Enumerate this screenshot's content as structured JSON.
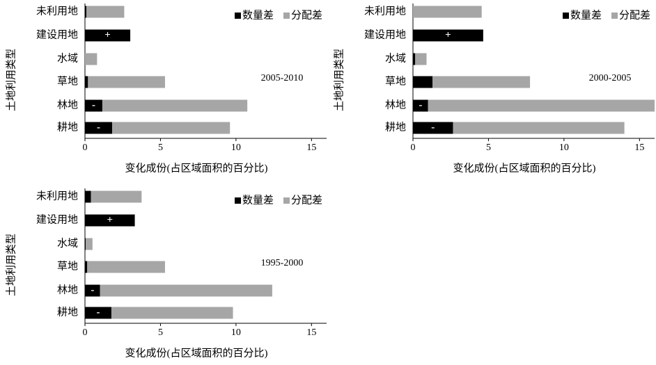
{
  "chart_data": [
    {
      "type": "stacked-barh",
      "title": "2005-2010",
      "xlabel": "变化成份(占区域面积的百分比)",
      "ylabel": "土地利用类型",
      "categories": [
        "未利用地",
        "建设用地",
        "水域",
        "草地",
        "林地",
        "耕地"
      ],
      "series": [
        {
          "name": "数量差",
          "color": "#000000",
          "values": [
            0.1,
            3.0,
            0,
            0.2,
            1.15,
            1.8
          ],
          "labels": [
            null,
            "+",
            null,
            null,
            "-",
            "-"
          ]
        },
        {
          "name": "分配差",
          "color": "#a6a6a6",
          "values": [
            2.5,
            0,
            0.8,
            5.1,
            9.6,
            7.8
          ]
        }
      ],
      "xlim": [
        0,
        16
      ],
      "xticks": [
        0,
        5,
        10,
        15
      ]
    },
    {
      "type": "stacked-barh",
      "title": "2000-2005",
      "xlabel": "变化成份(占区域面积的百分比)",
      "ylabel": "土地利用类型",
      "categories": [
        "未利用地",
        "建设用地",
        "水域",
        "草地",
        "林地",
        "耕地"
      ],
      "series": [
        {
          "name": "数量差",
          "color": "#000000",
          "values": [
            0,
            4.65,
            0.15,
            1.3,
            1.0,
            2.65
          ],
          "labels": [
            null,
            "+",
            null,
            null,
            "-",
            "-"
          ]
        },
        {
          "name": "分配差",
          "color": "#a6a6a6",
          "values": [
            4.55,
            0,
            0.75,
            6.45,
            15.0,
            11.35
          ]
        }
      ],
      "xlim": [
        0,
        16
      ],
      "xticks": [
        0,
        5,
        10,
        15
      ]
    },
    {
      "type": "stacked-barh",
      "title": "1995-2000",
      "xlabel": "变化成份(占区域面积的百分比)",
      "ylabel": "土地利用类型",
      "categories": [
        "未利用地",
        "建设用地",
        "水域",
        "草地",
        "林地",
        "耕地"
      ],
      "series": [
        {
          "name": "数量差",
          "color": "#000000",
          "values": [
            0.4,
            3.3,
            0.05,
            0.15,
            1.0,
            1.75
          ],
          "labels": [
            null,
            "+",
            null,
            null,
            "-",
            "-"
          ]
        },
        {
          "name": "分配差",
          "color": "#a6a6a6",
          "values": [
            3.35,
            0,
            0.45,
            5.15,
            11.4,
            8.05
          ]
        }
      ],
      "xlim": [
        0,
        16
      ],
      "xticks": [
        0,
        5,
        10,
        15
      ]
    }
  ]
}
